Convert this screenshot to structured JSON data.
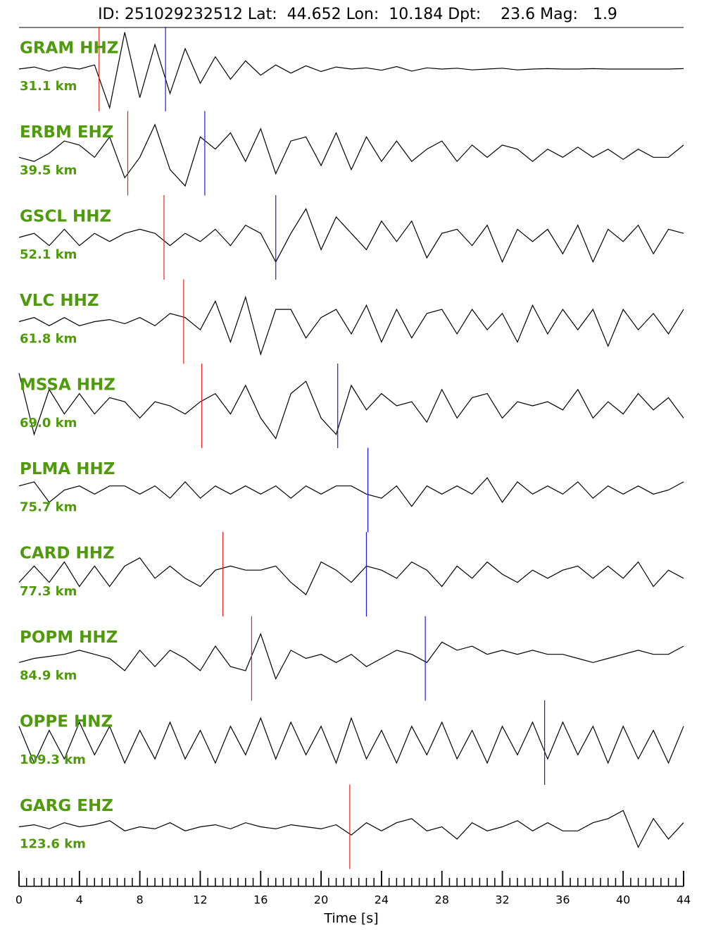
{
  "chart_data": {
    "type": "seismogram",
    "title": "ID: 251029232512 Lat:  44.652 Lon:  10.184 Dpt:    23.6 Mag:   1.9",
    "xlabel": "Time [s]",
    "xlim": [
      0,
      44
    ],
    "xticks": [
      0,
      4,
      8,
      12,
      16,
      20,
      24,
      28,
      32,
      36,
      40,
      44
    ],
    "x_minor_tick_step": 0.5,
    "trace_color": "#000000",
    "label_color": "#4f9a0a",
    "p_pick_color": "#e8201a",
    "s_pick_color": "#1a1ae8",
    "x": [
      0,
      1,
      2,
      3,
      4,
      5,
      6,
      7,
      8,
      9,
      10,
      11,
      12,
      13,
      14,
      15,
      16,
      17,
      18,
      19,
      20,
      21,
      22,
      23,
      24,
      25,
      26,
      27,
      28,
      29,
      30,
      31,
      32,
      33,
      34,
      35,
      36,
      37,
      38,
      39,
      40,
      41,
      42,
      43,
      44
    ],
    "series": [
      {
        "name": "GRAM HHZ",
        "distance": "31.1 km",
        "p_pick": 5.3,
        "s_pick": 9.7,
        "values": [
          0,
          0.05,
          -0.05,
          0.05,
          0,
          0.1,
          -0.95,
          0.9,
          -0.7,
          0.6,
          -0.6,
          0.5,
          -0.35,
          0.3,
          -0.25,
          0.2,
          -0.15,
          0.1,
          -0.1,
          0.08,
          -0.06,
          0.05,
          0,
          0.03,
          -0.03,
          0.06,
          -0.05,
          0.03,
          0,
          0.02,
          -0.02,
          0,
          0.02,
          -0.02,
          0,
          0.01,
          0,
          0,
          0.01,
          0,
          0,
          0,
          0,
          0,
          0.01
        ]
      },
      {
        "name": "ERBM EHZ",
        "distance": "39.5 km",
        "p_pick": 7.2,
        "s_pick": 12.3,
        "values": [
          -0.1,
          -0.2,
          0,
          0.3,
          0.2,
          -0.1,
          0.4,
          -0.6,
          -0.1,
          0.7,
          -0.4,
          -0.8,
          0.4,
          0.1,
          0.5,
          -0.2,
          0.6,
          -0.5,
          0.3,
          0.4,
          -0.3,
          0.5,
          -0.4,
          0.4,
          -0.2,
          0.3,
          -0.2,
          0.1,
          0.3,
          -0.2,
          0.2,
          -0.1,
          0.2,
          0.1,
          -0.2,
          0.1,
          -0.1,
          0.15,
          -0.1,
          0.1,
          -0.15,
          0.1,
          -0.1,
          -0.1,
          0.2
        ]
      },
      {
        "name": "GSCL HHZ",
        "distance": "52.1 km",
        "p_pick": 9.6,
        "s_pick": 17.0,
        "values": [
          0,
          0.1,
          -0.2,
          0.2,
          -0.2,
          0.1,
          -0.1,
          0.1,
          0.2,
          0.1,
          -0.2,
          0.1,
          -0.1,
          0.2,
          -0.2,
          0.3,
          0.1,
          -0.6,
          0.1,
          0.7,
          -0.3,
          0.5,
          0.1,
          -0.3,
          0.4,
          -0.1,
          0.4,
          -0.5,
          0.1,
          0.2,
          -0.2,
          0.3,
          -0.6,
          0.2,
          -0.1,
          0.2,
          -0.4,
          0.3,
          -0.6,
          0.2,
          -0.1,
          0.3,
          -0.4,
          0.2,
          0.1
        ]
      },
      {
        "name": "VLC HHZ",
        "distance": "61.8 km",
        "p_pick": 10.9,
        "s_pick": null,
        "values": [
          0,
          0.1,
          -0.1,
          0.1,
          -0.1,
          0,
          0.05,
          -0.05,
          0.1,
          -0.1,
          0.2,
          0.1,
          -0.2,
          0.5,
          -0.5,
          0.6,
          -0.8,
          0.3,
          0.3,
          -0.4,
          0.1,
          0.3,
          -0.3,
          0.4,
          -0.5,
          0.3,
          -0.4,
          0.2,
          0.3,
          -0.3,
          0.3,
          -0.2,
          0.2,
          -0.5,
          0.4,
          -0.3,
          0.3,
          -0.2,
          0.3,
          -0.6,
          0.3,
          -0.2,
          0.2,
          -0.3,
          0.3
        ]
      },
      {
        "name": "MSSA HHZ",
        "distance": "69.0 km",
        "p_pick": 12.1,
        "s_pick": 21.1,
        "values": [
          0.8,
          -0.7,
          0.4,
          -0.2,
          0.3,
          -0.2,
          0.2,
          0.1,
          -0.3,
          0.1,
          0,
          -0.2,
          0.1,
          0.3,
          -0.2,
          0.5,
          -0.3,
          -0.8,
          0.3,
          0.6,
          -0.3,
          -0.7,
          0.5,
          -0.1,
          0.3,
          0,
          0.1,
          -0.4,
          0.4,
          -0.3,
          0.2,
          0.3,
          -0.3,
          0.1,
          0,
          0.1,
          -0.1,
          0.4,
          -0.3,
          0.1,
          -0.2,
          0.3,
          -0.1,
          0.2,
          -0.3
        ]
      },
      {
        "name": "PLMA HHZ",
        "distance": "75.7 km",
        "p_pick": null,
        "s_pick": 23.1,
        "values": [
          0.1,
          0.2,
          -0.3,
          0,
          0.1,
          -0.1,
          0.1,
          0.1,
          -0.1,
          0.1,
          -0.2,
          0.2,
          -0.2,
          0.1,
          -0.1,
          0.1,
          -0.1,
          0.1,
          -0.2,
          0.1,
          -0.1,
          0.1,
          0.1,
          -0.1,
          -0.2,
          0.1,
          -0.4,
          0.1,
          -0.1,
          0.1,
          -0.1,
          0.3,
          -0.3,
          0.2,
          -0.1,
          0.1,
          -0.1,
          0.2,
          -0.2,
          0.1,
          -0.1,
          0.1,
          -0.1,
          0,
          0.2
        ]
      },
      {
        "name": "CARD HHZ",
        "distance": "77.3 km",
        "p_pick": 13.5,
        "s_pick": 23.0,
        "values": [
          -0.2,
          0.2,
          -0.2,
          0.3,
          -0.3,
          0.2,
          -0.3,
          0.2,
          0.4,
          -0.1,
          0.2,
          -0.1,
          -0.3,
          0.1,
          0.2,
          0.1,
          0.1,
          0.2,
          -0.2,
          -0.5,
          0.3,
          0.1,
          -0.2,
          0.2,
          0.1,
          -0.1,
          0.3,
          0.1,
          -0.3,
          0.2,
          -0.1,
          0.3,
          0,
          -0.2,
          0.1,
          -0.1,
          0.1,
          0.2,
          -0.1,
          0.2,
          -0.1,
          0.3,
          -0.3,
          0.1,
          -0.1
        ]
      },
      {
        "name": "POPM HHZ",
        "distance": "84.9 km",
        "p_pick": 15.4,
        "s_pick": 26.9,
        "values": [
          -0.1,
          0,
          0.05,
          0.1,
          0.2,
          0.1,
          0,
          -0.3,
          0.2,
          -0.2,
          0.2,
          0,
          -0.3,
          0.3,
          -0.2,
          -0.3,
          0.6,
          -0.5,
          0.2,
          0,
          0.1,
          -0.1,
          0.1,
          -0.2,
          0,
          0.2,
          0.1,
          -0.1,
          0.4,
          0.2,
          0.3,
          0.1,
          0.2,
          0.1,
          0.2,
          0.1,
          0.1,
          0,
          -0.1,
          0,
          0.1,
          0.2,
          0.1,
          0.1,
          0.3
        ]
      },
      {
        "name": "OPPE HNZ",
        "distance": "109.3 km",
        "p_pick": null,
        "s_pick": 34.8,
        "values": [
          0.4,
          -0.5,
          0.3,
          -0.4,
          0.5,
          -0.3,
          0.4,
          -0.5,
          0.3,
          -0.4,
          0.5,
          -0.4,
          0.3,
          -0.5,
          0.4,
          -0.3,
          0.6,
          -0.4,
          0.5,
          -0.3,
          0.4,
          -0.5,
          0.6,
          -0.4,
          0.3,
          -0.5,
          0.4,
          -0.3,
          0.5,
          -0.4,
          0.3,
          -0.5,
          0.4,
          -0.3,
          0.5,
          -0.4,
          0.5,
          -0.3,
          0.4,
          -0.5,
          0.4,
          -0.4,
          0.3,
          -0.5,
          0.4
        ]
      },
      {
        "name": "GARG EHZ",
        "distance": "123.6 km",
        "p_pick": 21.9,
        "s_pick": null,
        "values": [
          0,
          0.05,
          -0.05,
          0.1,
          0,
          0.05,
          0.15,
          -0.1,
          0,
          -0.05,
          0.1,
          -0.1,
          0,
          0.05,
          -0.05,
          0.1,
          0,
          -0.05,
          0.05,
          0,
          -0.05,
          0.05,
          -0.2,
          0.1,
          -0.1,
          0.1,
          0.2,
          -0.1,
          0,
          -0.3,
          0.1,
          -0.1,
          0,
          0.15,
          -0.1,
          0.1,
          -0.1,
          -0.1,
          0.1,
          0.2,
          0.4,
          -0.5,
          0.2,
          -0.3,
          0.1
        ]
      }
    ]
  }
}
